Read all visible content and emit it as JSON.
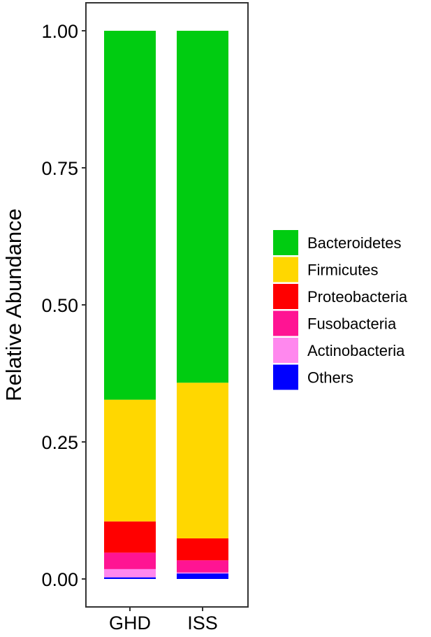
{
  "chart_data": {
    "type": "bar",
    "stacked": true,
    "categories": [
      "GHD",
      "ISS"
    ],
    "ylabel": "Relative Abundance",
    "xlabel": "",
    "ylim": [
      0,
      1.05
    ],
    "yticks": [
      0.0,
      0.25,
      0.5,
      0.75,
      1.0
    ],
    "ytick_labels": [
      "0.00",
      "0.25",
      "0.50",
      "0.75",
      "1.00"
    ],
    "grid": false,
    "legend_position": "right",
    "series": [
      {
        "name": "Others",
        "color": "#0000ff",
        "values": [
          0.003,
          0.01
        ]
      },
      {
        "name": "Actinobacteria",
        "color": "#ff88ee",
        "values": [
          0.015,
          0.002
        ]
      },
      {
        "name": "Fusobacteria",
        "color": "#ff1493",
        "values": [
          0.03,
          0.022
        ]
      },
      {
        "name": "Proteobacteria",
        "color": "#ff0000",
        "values": [
          0.057,
          0.04
        ]
      },
      {
        "name": "Firmicutes",
        "color": "#ffd700",
        "values": [
          0.222,
          0.284
        ]
      },
      {
        "name": "Bacteroidetes",
        "color": "#00cc11",
        "values": [
          0.673,
          0.642
        ]
      }
    ],
    "legend_order": [
      "Bacteroidetes",
      "Firmicutes",
      "Proteobacteria",
      "Fusobacteria",
      "Actinobacteria",
      "Others"
    ]
  }
}
